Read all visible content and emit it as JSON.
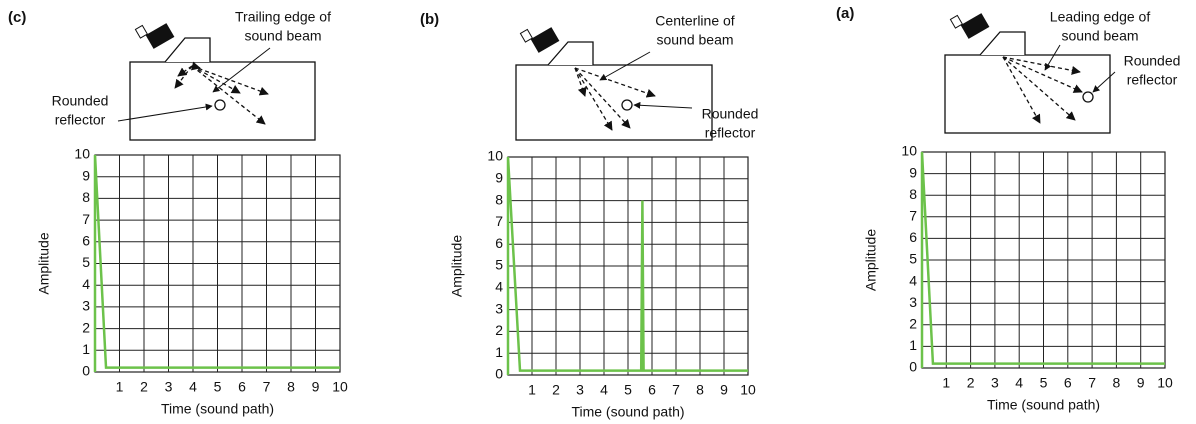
{
  "chart_data": [
    {
      "type": "line",
      "title": "(c)",
      "annotations": [
        [
          "Trailing edge of",
          "sound beam"
        ],
        [
          "Rounded",
          "reflector"
        ]
      ],
      "xlabel": "Time (sound path)",
      "ylabel": "Amplitude",
      "xlim": [
        0,
        10
      ],
      "ylim": [
        0,
        10
      ],
      "xticks": [
        1,
        2,
        3,
        4,
        5,
        6,
        7,
        8,
        9,
        10
      ],
      "yticks": [
        0,
        1,
        2,
        3,
        4,
        5,
        6,
        7,
        8,
        9,
        10
      ],
      "grid": true,
      "series": [
        {
          "color": "#6cc24a",
          "x": [
            0,
            0,
            0.45,
            10
          ],
          "values": [
            0,
            10,
            0.2,
            0.2
          ]
        }
      ]
    },
    {
      "type": "line",
      "title": "(b)",
      "annotations": [
        [
          "Centerline of",
          "sound beam"
        ],
        [
          "Rounded",
          "reflector"
        ]
      ],
      "xlabel": "Time (sound path)",
      "ylabel": "Amplitude",
      "xlim": [
        0,
        10
      ],
      "ylim": [
        0,
        10
      ],
      "xticks": [
        1,
        2,
        3,
        4,
        5,
        6,
        7,
        8,
        9,
        10
      ],
      "yticks": [
        0,
        1,
        2,
        3,
        4,
        5,
        6,
        7,
        8,
        9,
        10
      ],
      "grid": true,
      "series": [
        {
          "color": "#6cc24a",
          "x": [
            0,
            0,
            0.5,
            5.55,
            5.6,
            5.65,
            10
          ],
          "values": [
            0,
            10,
            0.2,
            0.2,
            8,
            0.2,
            0.2
          ]
        }
      ]
    },
    {
      "type": "line",
      "title": "(a)",
      "annotations": [
        [
          "Leading edge of",
          "sound beam"
        ],
        [
          "Rounded",
          "reflector"
        ]
      ],
      "xlabel": "Time (sound path)",
      "ylabel": "Amplitude",
      "xlim": [
        0,
        10
      ],
      "ylim": [
        0,
        10
      ],
      "xticks": [
        1,
        2,
        3,
        4,
        5,
        6,
        7,
        8,
        9,
        10
      ],
      "yticks": [
        0,
        1,
        2,
        3,
        4,
        5,
        6,
        7,
        8,
        9,
        10
      ],
      "grid": true,
      "series": [
        {
          "color": "#6cc24a",
          "x": [
            0,
            0,
            0.45,
            10
          ],
          "values": [
            0,
            10,
            0.2,
            0.2
          ]
        }
      ]
    }
  ]
}
